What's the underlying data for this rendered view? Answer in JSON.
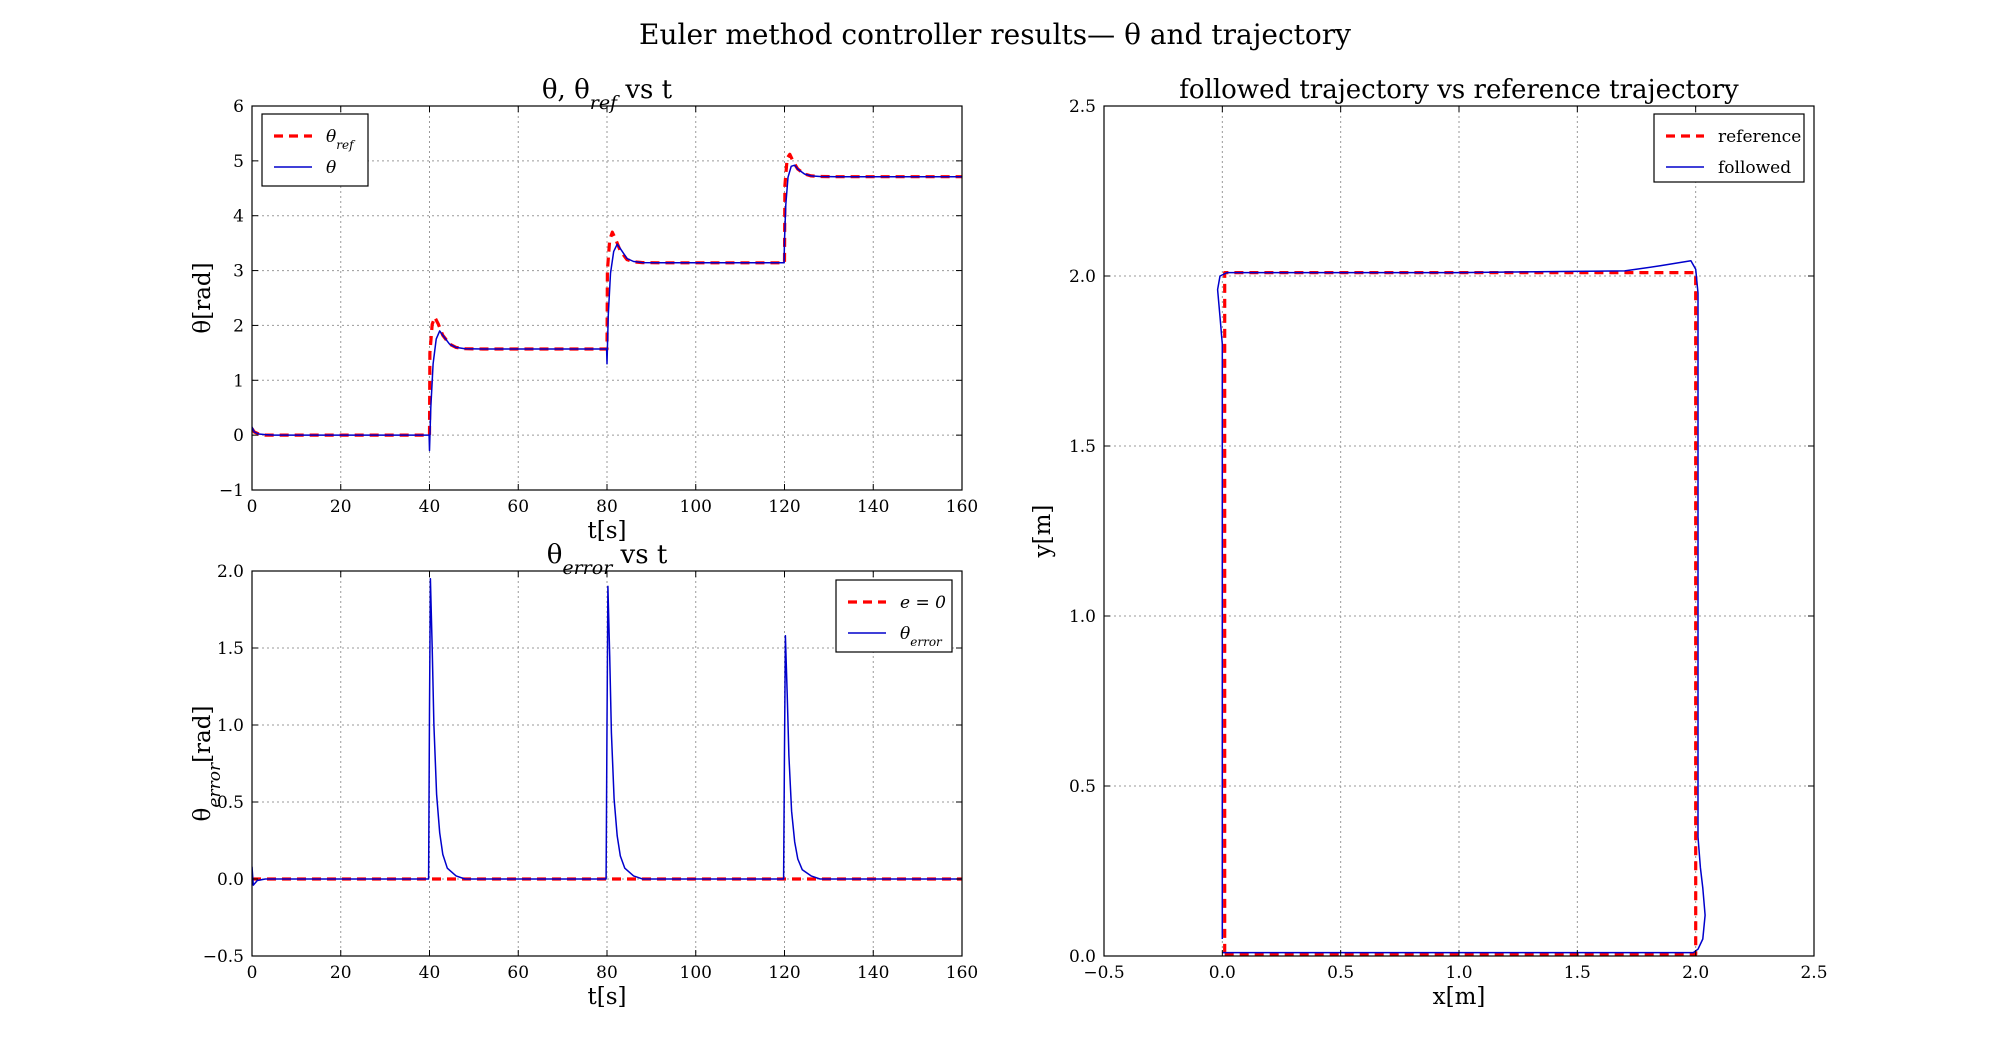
{
  "figure": {
    "title": "Euler method controller results—  θ and trajectory"
  },
  "chart_data": [
    {
      "type": "line",
      "title": "θ,  θ_ref vs t",
      "xlabel": "t[s]",
      "ylabel": "θ[rad]",
      "xlim": [
        0,
        160
      ],
      "ylim": [
        -1,
        6
      ],
      "xticks": [
        0,
        20,
        40,
        60,
        80,
        100,
        120,
        140,
        160
      ],
      "yticks": [
        -1,
        0,
        1,
        2,
        3,
        4,
        5,
        6
      ],
      "grid": true,
      "legend": "upper-left",
      "series": [
        {
          "name": "θ_ref",
          "color": "#ff0000",
          "style": "dashed",
          "x": [
            0,
            0.5,
            1.5,
            3,
            40,
            40.1,
            40.6,
            41.2,
            42,
            43,
            44.5,
            46,
            48,
            52,
            80,
            80.1,
            80.6,
            81.2,
            82,
            83,
            84.5,
            86,
            88,
            92,
            120,
            120.1,
            120.6,
            121.2,
            122,
            123,
            124.5,
            126,
            128,
            132,
            160
          ],
          "y": [
            0.12,
            0.06,
            0.02,
            0.0,
            0.0,
            1.5,
            2.02,
            2.15,
            2.02,
            1.82,
            1.66,
            1.6,
            1.575,
            1.571,
            1.571,
            3.0,
            3.56,
            3.7,
            3.56,
            3.36,
            3.2,
            3.16,
            3.145,
            3.142,
            3.142,
            4.55,
            5.05,
            5.12,
            4.98,
            4.85,
            4.76,
            4.725,
            4.715,
            4.712,
            4.712
          ]
        },
        {
          "name": "θ",
          "color": "#0000cc",
          "style": "solid",
          "x": [
            0,
            0.5,
            1.5,
            3,
            5,
            39.9,
            40.0,
            40.3,
            40.8,
            41.5,
            42.3,
            43,
            44.5,
            46,
            48,
            52,
            79.9,
            80.0,
            80.3,
            80.8,
            81.5,
            82.3,
            83,
            84.5,
            86,
            88,
            92,
            119.9,
            120.0,
            120.3,
            120.8,
            121.5,
            122.3,
            123,
            124.5,
            126,
            128,
            132,
            160
          ],
          "y": [
            0.15,
            0.06,
            0.02,
            0.01,
            0.0,
            0.0,
            -0.28,
            0.5,
            1.3,
            1.75,
            1.9,
            1.82,
            1.66,
            1.6,
            1.575,
            1.571,
            1.571,
            1.3,
            2.2,
            2.95,
            3.35,
            3.48,
            3.4,
            3.22,
            3.165,
            3.145,
            3.142,
            3.142,
            3.55,
            4.2,
            4.7,
            4.9,
            4.92,
            4.85,
            4.76,
            4.725,
            4.715,
            4.712,
            4.712
          ]
        }
      ]
    },
    {
      "type": "line",
      "title": "θ_error vs t",
      "xlabel": "t[s]",
      "ylabel": "θ_error[rad]",
      "xlim": [
        0,
        160
      ],
      "ylim": [
        -0.5,
        2.0
      ],
      "xticks": [
        0,
        20,
        40,
        60,
        80,
        100,
        120,
        140,
        160
      ],
      "yticks": [
        -0.5,
        0.0,
        0.5,
        1.0,
        1.5,
        2.0
      ],
      "grid": true,
      "legend": "upper-right",
      "series": [
        {
          "name": "e = 0",
          "color": "#ff0000",
          "style": "dashed",
          "x": [
            0,
            160
          ],
          "y": [
            0,
            0
          ]
        },
        {
          "name": "θ_error",
          "color": "#0000cc",
          "style": "solid",
          "x": [
            0,
            0.3,
            1.2,
            3,
            39.8,
            40.0,
            40.2,
            40.6,
            41.0,
            41.6,
            42.3,
            43,
            44,
            46,
            48,
            79.8,
            80.0,
            80.2,
            80.6,
            81.0,
            81.6,
            82.3,
            83,
            84,
            86,
            88,
            119.8,
            120.0,
            120.2,
            120.6,
            121.0,
            121.6,
            122.3,
            123,
            124,
            126,
            128,
            160
          ],
          "y": [
            0.08,
            -0.04,
            -0.01,
            0.0,
            0.0,
            1.1,
            1.95,
            1.5,
            1.0,
            0.55,
            0.3,
            0.16,
            0.07,
            0.02,
            0.0,
            0.0,
            1.0,
            1.9,
            1.45,
            0.95,
            0.52,
            0.28,
            0.15,
            0.07,
            0.02,
            0.0,
            0.0,
            0.85,
            1.58,
            1.2,
            0.8,
            0.44,
            0.24,
            0.13,
            0.06,
            0.02,
            0.0,
            0.0
          ]
        }
      ]
    },
    {
      "type": "line",
      "title": "followed trajectory vs reference trajectory",
      "xlabel": "x[m]",
      "ylabel": "y[m]",
      "xlim": [
        -0.5,
        2.5
      ],
      "ylim": [
        0.0,
        2.5
      ],
      "xticks": [
        -0.5,
        0.0,
        0.5,
        1.0,
        1.5,
        2.0,
        2.5
      ],
      "yticks": [
        0.0,
        0.5,
        1.0,
        1.5,
        2.0,
        2.5
      ],
      "grid": true,
      "legend": "upper-right",
      "series": [
        {
          "name": "reference",
          "color": "#ff0000",
          "style": "dashed",
          "x": [
            0.01,
            2.0,
            2.0,
            0.01,
            0.01
          ],
          "y": [
            0.005,
            0.005,
            2.01,
            2.01,
            0.005
          ]
        },
        {
          "name": "followed",
          "color": "#0000cc",
          "style": "solid",
          "x": [
            0.0,
            0.3,
            1.0,
            1.9,
            1.99,
            2.01,
            2.03,
            2.04,
            2.03,
            2.02,
            2.01,
            2.01,
            2.01,
            2.01,
            2.0,
            1.98,
            1.85,
            1.7,
            1.0,
            0.2,
            0.02,
            -0.01,
            -0.02,
            -0.01,
            0.0,
            0.0,
            0.0,
            0.0
          ],
          "y": [
            0.01,
            0.01,
            0.01,
            0.01,
            0.01,
            0.02,
            0.05,
            0.12,
            0.2,
            0.26,
            0.35,
            0.8,
            1.5,
            1.95,
            2.02,
            2.045,
            2.03,
            2.015,
            2.01,
            2.01,
            2.01,
            2.0,
            1.96,
            1.88,
            1.8,
            1.5,
            0.8,
            0.05
          ]
        }
      ]
    }
  ]
}
